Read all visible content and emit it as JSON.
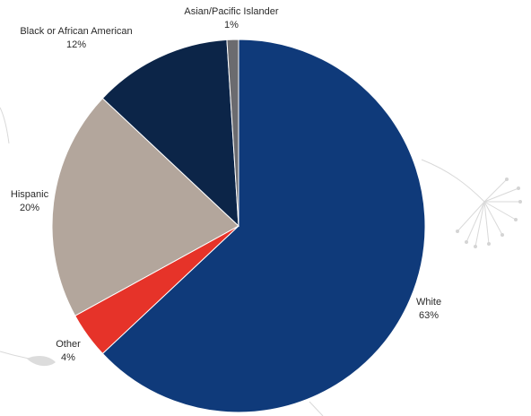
{
  "chart_data": {
    "type": "pie",
    "title": "",
    "slices": [
      {
        "label": "White",
        "value": 63,
        "value_label": "63%",
        "color": "#0f3a7a"
      },
      {
        "label": "Other",
        "value": 4,
        "value_label": "4%",
        "color": "#e63329"
      },
      {
        "label": "Hispanic",
        "value": 20,
        "value_label": "20%",
        "color": "#b3a69c"
      },
      {
        "label": "Black or African American",
        "value": 12,
        "value_label": "12%",
        "color": "#0c2548"
      },
      {
        "label": "Asian/Pacific Islander",
        "value": 1,
        "value_label": "1%",
        "color": "#6b6b6f"
      }
    ],
    "start_angle_deg": 0,
    "direction": "clockwise",
    "legend": "none"
  }
}
